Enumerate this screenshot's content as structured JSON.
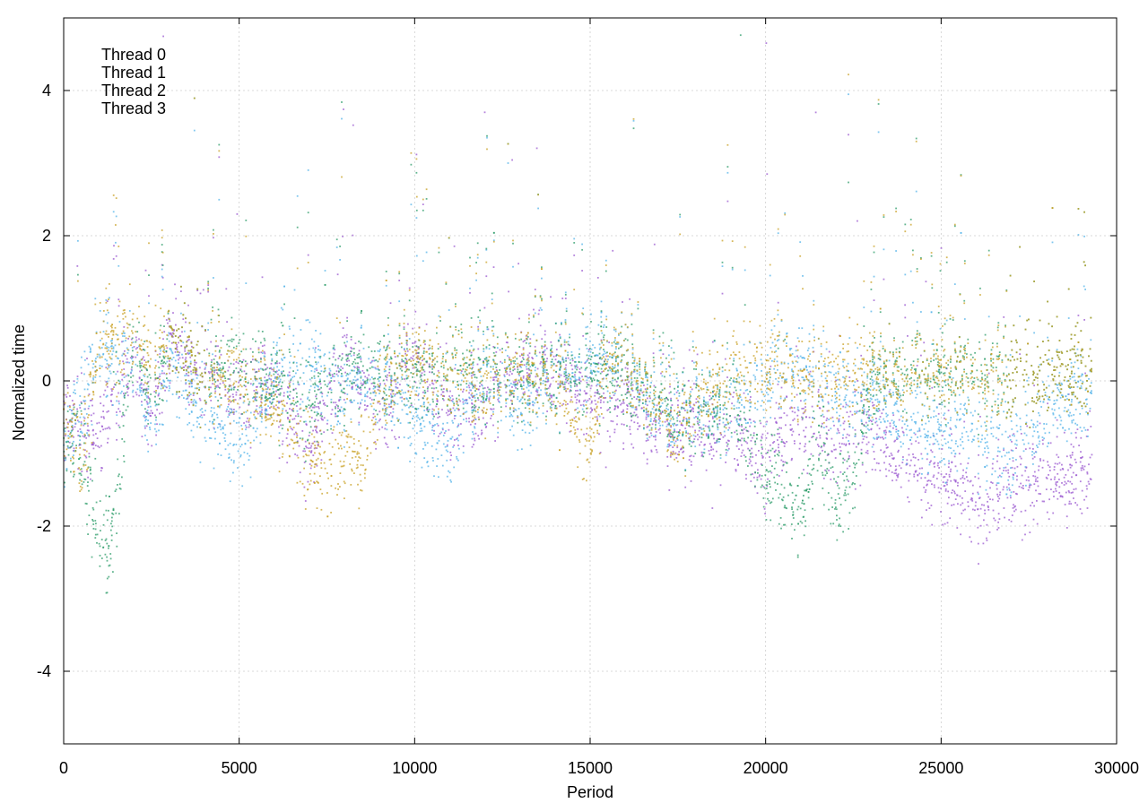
{
  "chart_data": {
    "type": "scatter",
    "xlabel": "Period",
    "ylabel": "Normalized time",
    "xlim": [
      0,
      30000
    ],
    "ylim": [
      -5,
      5
    ],
    "xticks": [
      0,
      5000,
      10000,
      15000,
      20000,
      25000,
      30000
    ],
    "yticks": [
      -4,
      -2,
      0,
      2,
      4
    ],
    "xtick_labels": [
      "0",
      "5000",
      "10000",
      "15000",
      "20000",
      "25000",
      "30000"
    ],
    "ytick_labels": [
      "-4",
      "-2",
      "0",
      "2",
      "4"
    ],
    "grid": true,
    "legend_position": "top-left",
    "point_count_per_series": 29300,
    "series": [
      {
        "name": "Thread 0",
        "color": "#9b59d0",
        "trend": [
          [
            0,
            -0.5
          ],
          [
            500,
            -0.6
          ],
          [
            1000,
            -0.8
          ],
          [
            2000,
            0.3
          ],
          [
            2500,
            -0.6
          ],
          [
            3000,
            0.5
          ],
          [
            4000,
            0.1
          ],
          [
            5000,
            -0.2
          ],
          [
            6000,
            -0.1
          ],
          [
            7000,
            -0.9
          ],
          [
            8000,
            0.2
          ],
          [
            9000,
            -0.4
          ],
          [
            10000,
            0.3
          ],
          [
            11000,
            -0.5
          ],
          [
            12000,
            -0.2
          ],
          [
            13000,
            0.1
          ],
          [
            14000,
            0.2
          ],
          [
            15000,
            -0.2
          ],
          [
            16000,
            -0.4
          ],
          [
            17000,
            -0.6
          ],
          [
            18000,
            -0.8
          ],
          [
            19000,
            -0.7
          ],
          [
            20000,
            -1.1
          ],
          [
            21000,
            -0.5
          ],
          [
            22000,
            -0.8
          ],
          [
            23000,
            -0.6
          ],
          [
            24000,
            -1.2
          ],
          [
            25000,
            -1.4
          ],
          [
            26000,
            -1.6
          ],
          [
            27000,
            -1.5
          ],
          [
            28000,
            -1.3
          ],
          [
            29300,
            -1.4
          ]
        ]
      },
      {
        "name": "Thread 1",
        "color": "#56b4e9",
        "trend": [
          [
            0,
            -0.9
          ],
          [
            500,
            -0.4
          ],
          [
            1000,
            0.4
          ],
          [
            2000,
            0.2
          ],
          [
            2500,
            -0.7
          ],
          [
            3000,
            0.3
          ],
          [
            4000,
            -0.4
          ],
          [
            5000,
            -0.9
          ],
          [
            6000,
            0.1
          ],
          [
            7000,
            0.3
          ],
          [
            8000,
            -0.2
          ],
          [
            9000,
            0.1
          ],
          [
            10000,
            -0.6
          ],
          [
            11000,
            -0.9
          ],
          [
            12000,
            0.2
          ],
          [
            13000,
            -0.4
          ],
          [
            14000,
            0.1
          ],
          [
            15000,
            0.3
          ],
          [
            16000,
            0.2
          ],
          [
            17000,
            -0.5
          ],
          [
            18000,
            -0.5
          ],
          [
            19000,
            -0.3
          ],
          [
            20000,
            0.0
          ],
          [
            21000,
            0.2
          ],
          [
            22000,
            -0.1
          ],
          [
            23000,
            -0.3
          ],
          [
            24000,
            -0.6
          ],
          [
            25000,
            -0.8
          ],
          [
            26000,
            -0.6
          ],
          [
            27000,
            -1.1
          ],
          [
            28000,
            -0.4
          ],
          [
            29300,
            -0.2
          ]
        ]
      },
      {
        "name": "Thread 2",
        "color": "#2f9e6b",
        "trend": [
          [
            0,
            -0.8
          ],
          [
            500,
            -1.0
          ],
          [
            1000,
            -2.2
          ],
          [
            1300,
            -2.4
          ],
          [
            2000,
            0.5
          ],
          [
            2500,
            -0.3
          ],
          [
            3000,
            0.6
          ],
          [
            4000,
            0.1
          ],
          [
            5000,
            0.2
          ],
          [
            6000,
            0.0
          ],
          [
            7000,
            -0.3
          ],
          [
            8000,
            0.1
          ],
          [
            9000,
            0.2
          ],
          [
            10000,
            0.0
          ],
          [
            11000,
            0.1
          ],
          [
            12000,
            0.2
          ],
          [
            13000,
            0.0
          ],
          [
            14000,
            0.1
          ],
          [
            15000,
            0.2
          ],
          [
            16000,
            0.0
          ],
          [
            17000,
            -0.3
          ],
          [
            18000,
            -0.6
          ],
          [
            19000,
            -0.2
          ],
          [
            20000,
            -1.3
          ],
          [
            20500,
            -1.6
          ],
          [
            21000,
            -1.9
          ],
          [
            21500,
            -0.8
          ],
          [
            22000,
            -1.6
          ],
          [
            22500,
            -1.3
          ],
          [
            23000,
            0.0
          ],
          [
            24000,
            0.1
          ],
          [
            25000,
            0.0
          ],
          [
            26000,
            0.2
          ],
          [
            27000,
            0.0
          ],
          [
            28000,
            0.1
          ],
          [
            29300,
            0.1
          ]
        ]
      },
      {
        "name": "Thread 3",
        "color": "#c9a227",
        "trend": [
          [
            0,
            -0.4
          ],
          [
            500,
            -1.2
          ],
          [
            1000,
            0.5
          ],
          [
            2000,
            0.6
          ],
          [
            2500,
            0.2
          ],
          [
            3000,
            0.6
          ],
          [
            4000,
            0.1
          ],
          [
            5000,
            0.0
          ],
          [
            6000,
            -0.3
          ],
          [
            7000,
            -1.0
          ],
          [
            7500,
            -1.3
          ],
          [
            8000,
            -0.9
          ],
          [
            8500,
            -1.3
          ],
          [
            9000,
            0.0
          ],
          [
            10000,
            0.2
          ],
          [
            11000,
            0.1
          ],
          [
            12000,
            0.0
          ],
          [
            13000,
            0.1
          ],
          [
            14000,
            0.0
          ],
          [
            15000,
            -0.9
          ],
          [
            15500,
            0.3
          ],
          [
            16000,
            0.2
          ],
          [
            17000,
            -0.4
          ],
          [
            17500,
            -0.8
          ],
          [
            18000,
            -0.3
          ],
          [
            19000,
            0.1
          ],
          [
            20000,
            0.2
          ],
          [
            21000,
            0.0
          ],
          [
            22000,
            0.1
          ],
          [
            23000,
            0.1
          ],
          [
            24000,
            0.0
          ],
          [
            25000,
            0.1
          ],
          [
            26000,
            0.1
          ],
          [
            27000,
            0.0
          ],
          [
            28000,
            0.1
          ],
          [
            29300,
            0.1
          ]
        ]
      }
    ]
  }
}
